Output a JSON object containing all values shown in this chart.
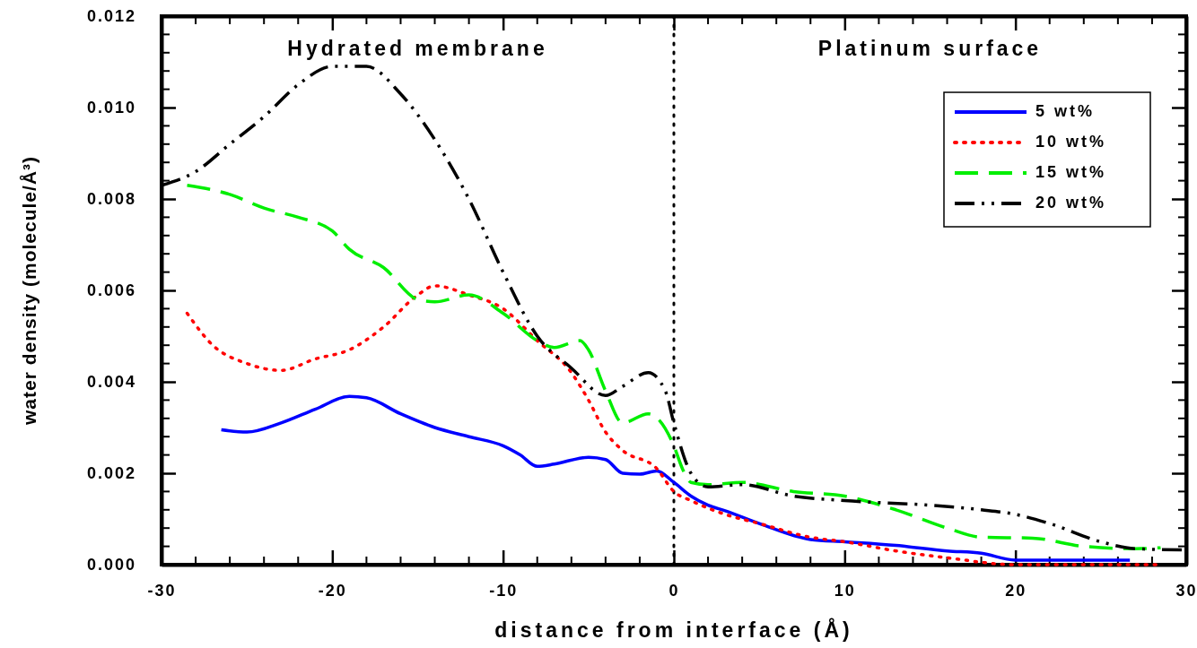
{
  "chart_data": {
    "type": "line",
    "xlabel": "distance from interface (Å)",
    "ylabel": "water density (molecule/Å³)",
    "xlim": [
      -30,
      30
    ],
    "xticks": [
      -30,
      -20,
      -10,
      0,
      10,
      20,
      30
    ],
    "ylim": [
      0,
      0.012
    ],
    "yticks": [
      {
        "value": 0,
        "label": "0.000"
      },
      {
        "value": 0.002,
        "label": "0.002"
      },
      {
        "value": 0.004,
        "label": "0.004"
      },
      {
        "value": 0.006,
        "label": "0.006"
      },
      {
        "value": 0.008,
        "label": "0.008"
      },
      {
        "value": 0.01,
        "label": "0.010"
      },
      {
        "value": 0.012,
        "label": "0.012"
      }
    ],
    "grid": false,
    "legend": "top right",
    "marker": "none",
    "annotations": [
      "Hydrated membrane",
      "Platinum surface"
    ],
    "ref_lines": [
      {
        "axis": "x",
        "value": 0,
        "label": null,
        "color": "#000000",
        "line_style": "dotted"
      }
    ],
    "series": [
      {
        "name": "5 wt%",
        "color": "#0000ff",
        "line_style": "solid",
        "x": [
          -26.5,
          -25,
          -23,
          -21,
          -19,
          -18,
          -16,
          -14,
          -12,
          -10,
          -9,
          -8,
          -7,
          -5,
          -4,
          -3,
          -2,
          -1,
          0,
          1,
          2,
          3,
          5,
          8,
          10,
          13,
          16,
          18,
          20,
          22,
          24,
          26.7
        ],
        "values": [
          0.00295,
          0.0029,
          0.0031,
          0.0034,
          0.00368,
          0.00365,
          0.0033,
          0.003,
          0.0028,
          0.0026,
          0.0024,
          0.00215,
          0.0022,
          0.00235,
          0.0023,
          0.002,
          0.00198,
          0.00205,
          0.0018,
          0.0015,
          0.0013,
          0.00118,
          0.0009,
          0.00055,
          0.0005,
          0.00042,
          0.0003,
          0.00025,
          0.0001,
          0.0001,
          0.0001,
          0.0001
        ]
      },
      {
        "name": "10 wt%",
        "color": "#ff0000",
        "line_style": "dotted",
        "x": [
          -28.5,
          -27,
          -25,
          -23,
          -21,
          -19,
          -17,
          -15,
          -14,
          -12,
          -10,
          -8,
          -6,
          -5,
          -4,
          -3,
          -1,
          0,
          1,
          3,
          5,
          8,
          10,
          13,
          16,
          20,
          25,
          28.5
        ],
        "values": [
          0.0055,
          0.0048,
          0.0044,
          0.00425,
          0.0045,
          0.0047,
          0.0052,
          0.0059,
          0.0061,
          0.0059,
          0.0056,
          0.0049,
          0.0042,
          0.0036,
          0.0029,
          0.0025,
          0.0021,
          0.0016,
          0.0014,
          0.0011,
          0.0009,
          0.0006,
          0.0005,
          0.0003,
          0.00015,
          0,
          0,
          0
        ]
      },
      {
        "name": "15 wt%",
        "color": "#00ee00",
        "line_style": "dashed",
        "x": [
          -28.5,
          -26,
          -24,
          -22,
          -20,
          -19,
          -17,
          -15,
          -14,
          -12,
          -10,
          -8,
          -7,
          -5.5,
          -5,
          -4,
          -3,
          -1.5,
          0,
          0.5,
          1,
          2,
          4,
          7,
          10,
          13,
          16,
          18,
          21,
          24,
          27,
          28.5
        ],
        "values": [
          0.0083,
          0.0081,
          0.0078,
          0.0076,
          0.0073,
          0.0069,
          0.0065,
          0.0058,
          0.00575,
          0.0059,
          0.0055,
          0.0049,
          0.00475,
          0.0049,
          0.0047,
          0.0038,
          0.0031,
          0.0033,
          0.0026,
          0.0021,
          0.0018,
          0.00175,
          0.0018,
          0.0016,
          0.0015,
          0.0012,
          0.0008,
          0.0006,
          0.00058,
          0.0004,
          0.00035,
          0.00037
        ]
      },
      {
        "name": "20 wt%",
        "color": "#000000",
        "line_style": "dashdotdot",
        "x": [
          -30,
          -28,
          -26,
          -24,
          -22,
          -20,
          -18,
          -16,
          -14,
          -12,
          -10,
          -8,
          -6,
          -4,
          -3,
          -1.5,
          -0.5,
          0,
          1,
          2,
          4,
          7,
          10,
          15,
          18,
          20,
          22,
          25,
          27,
          30
        ],
        "values": [
          0.0083,
          0.0086,
          0.0092,
          0.0098,
          0.0105,
          0.0109,
          0.0109,
          0.0103,
          0.0093,
          0.008,
          0.0064,
          0.005,
          0.0043,
          0.0037,
          0.0039,
          0.0042,
          0.0038,
          0.0031,
          0.002,
          0.0017,
          0.00175,
          0.0015,
          0.0014,
          0.0013,
          0.0012,
          0.0011,
          0.0009,
          0.0005,
          0.00035,
          0.00032
        ]
      }
    ]
  }
}
